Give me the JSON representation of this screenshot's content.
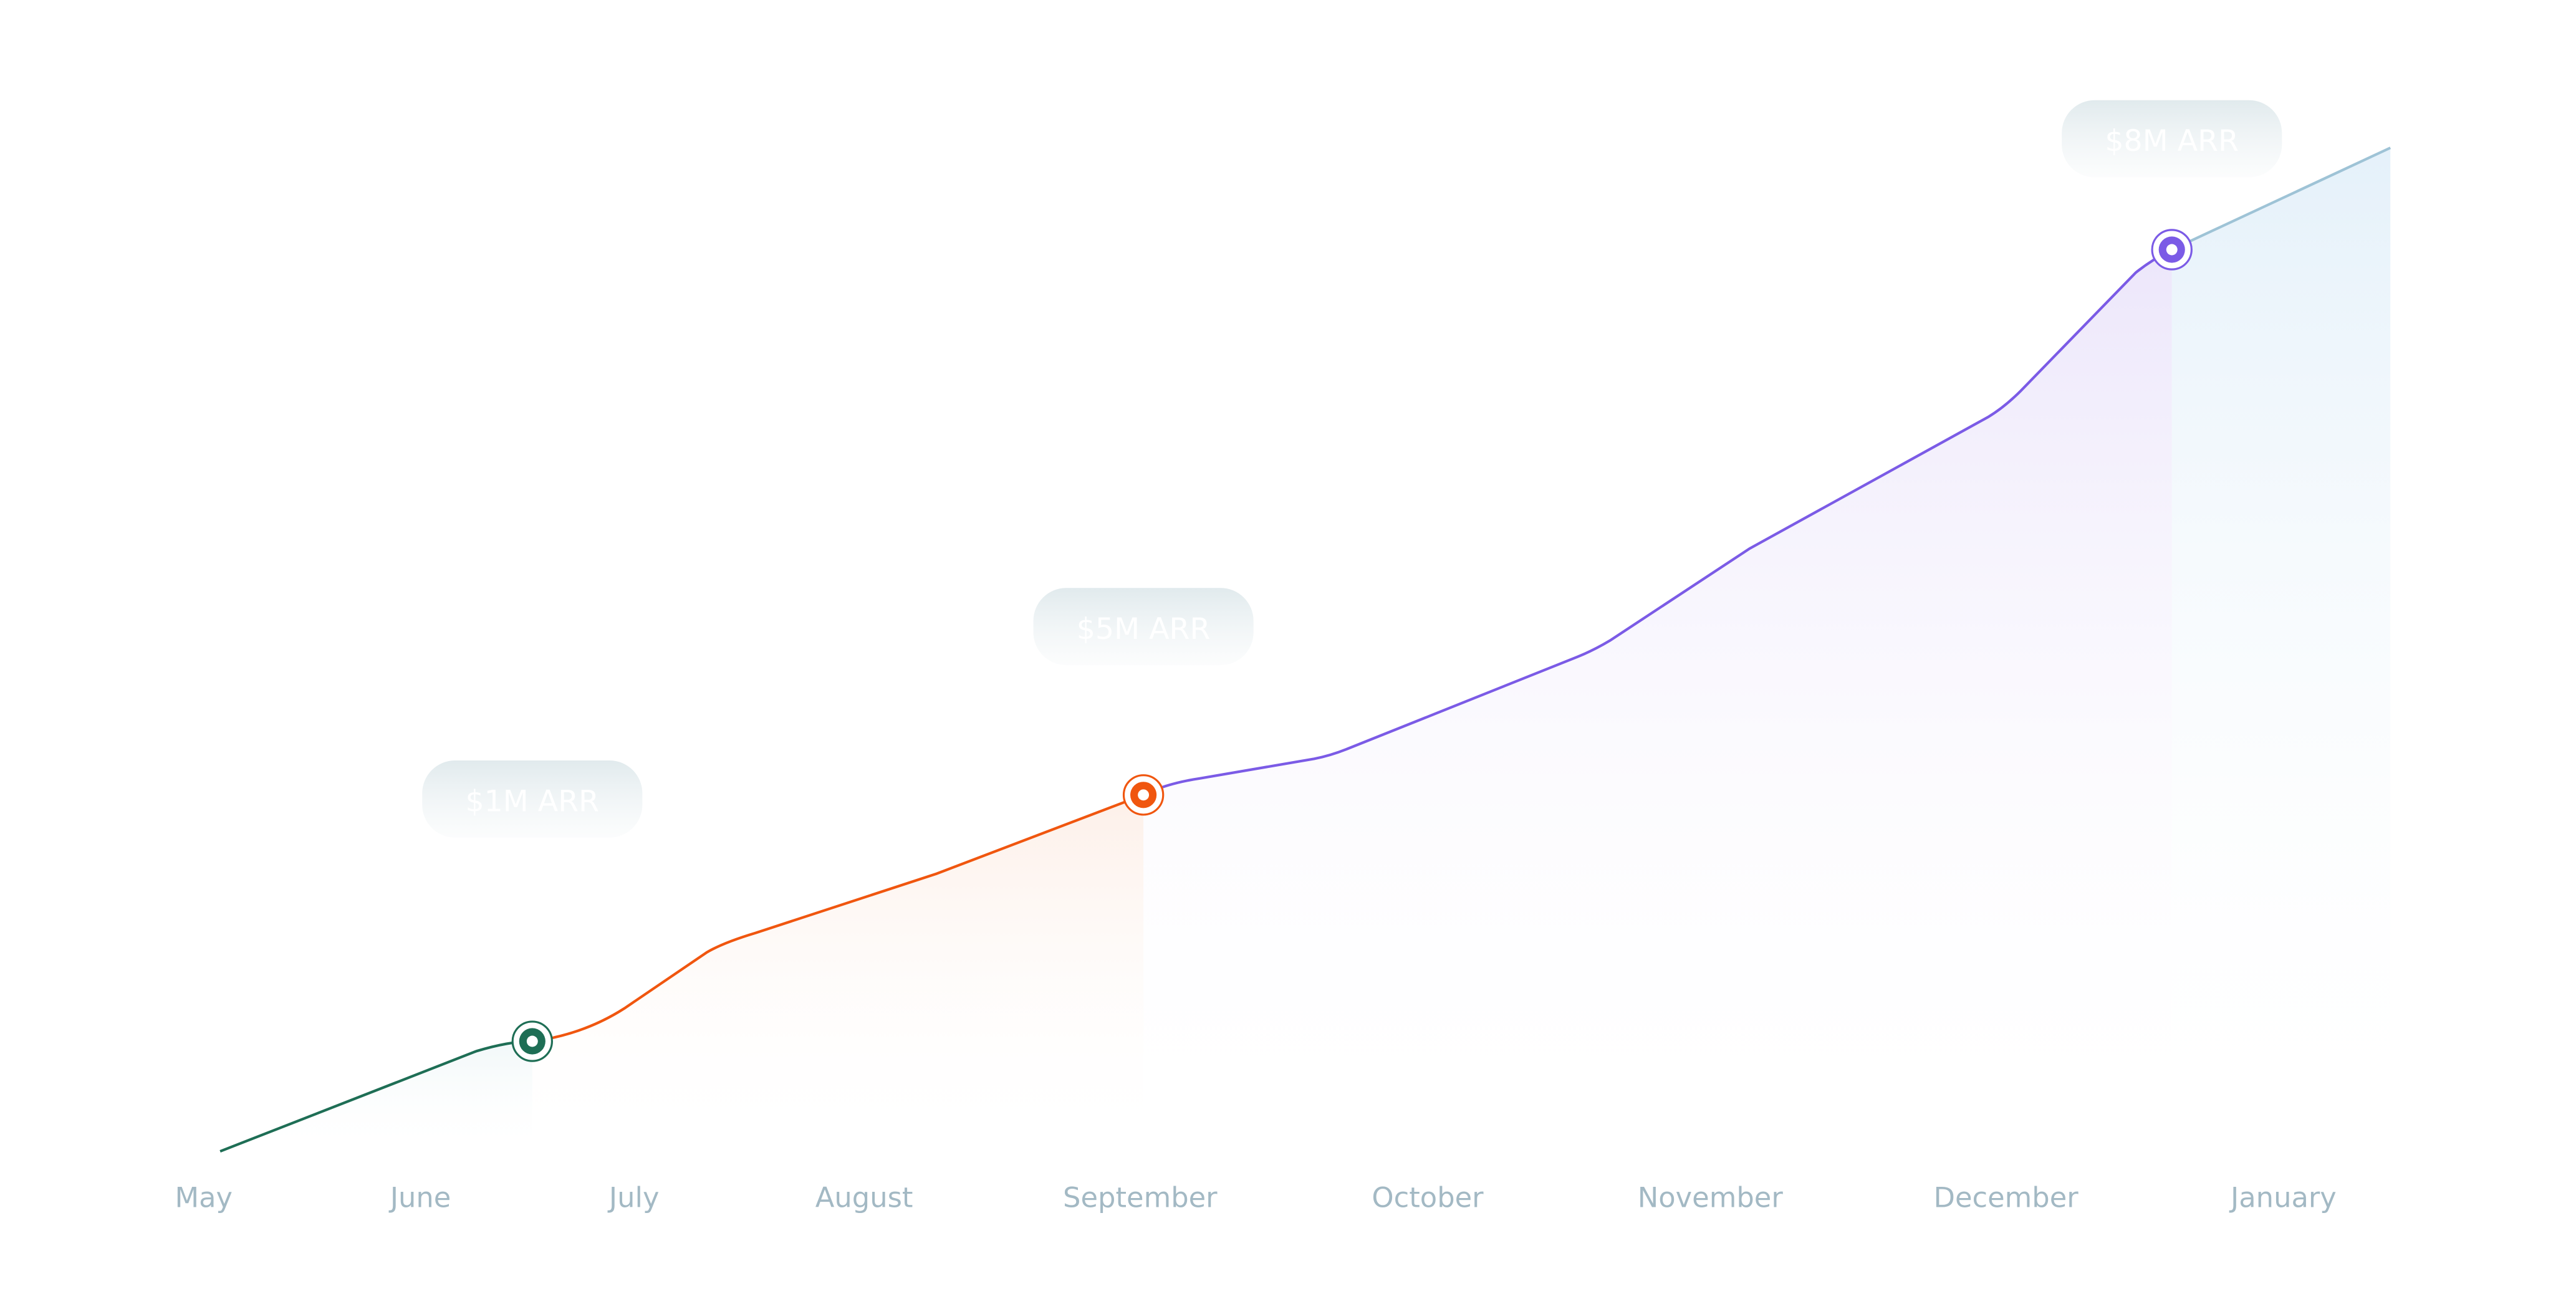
{
  "chart_data": {
    "type": "line",
    "categories": [
      "May",
      "June",
      "July",
      "August",
      "September",
      "October",
      "November",
      "December",
      "January"
    ],
    "annotations": [
      {
        "label": "$1M ARR",
        "color": "#1e6e55"
      },
      {
        "label": "$5M ARR",
        "color": "#f0560f"
      },
      {
        "label": "$8M ARR",
        "color": "#7b5be6"
      }
    ]
  }
}
